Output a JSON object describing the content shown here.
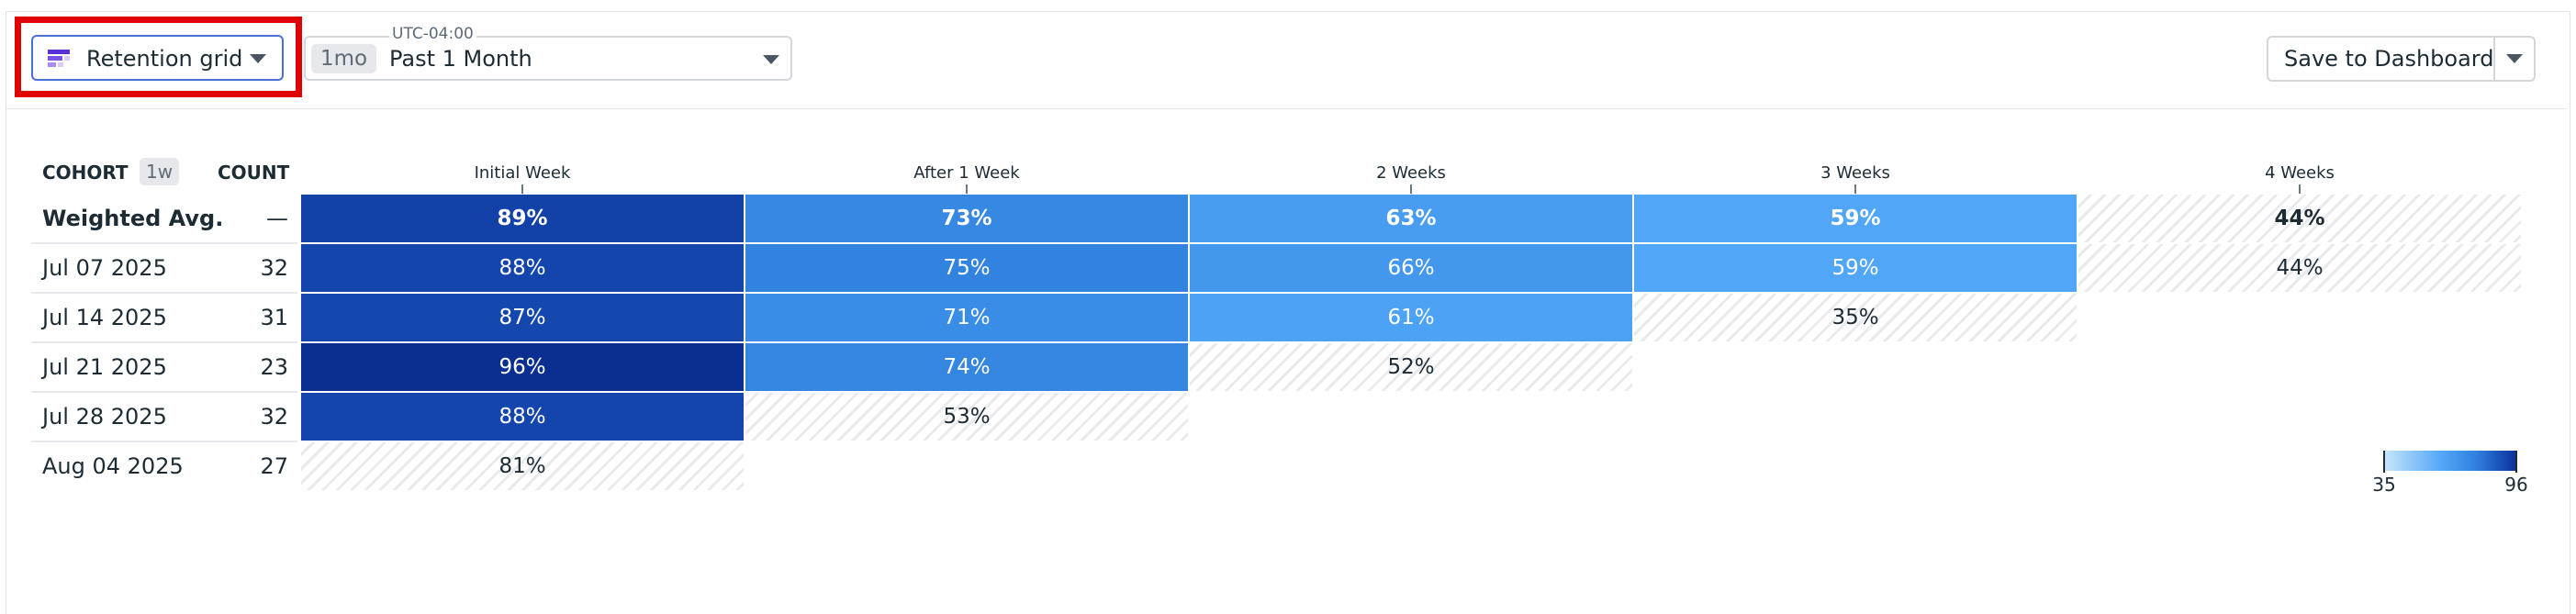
{
  "toolbar": {
    "visualization": {
      "label": "Retention grid",
      "icon": "retention-grid-icon"
    },
    "time_range": {
      "timezone": "UTC-04:00",
      "badge": "1mo",
      "label": "Past 1 Month"
    },
    "save": {
      "label": "Save to Dashboard"
    }
  },
  "grid": {
    "cohort_header": "COHORT",
    "period_badge": "1w",
    "count_header": "COUNT",
    "columns": [
      "Initial Week",
      "After 1 Week",
      "2 Weeks",
      "3 Weeks",
      "4 Weeks"
    ],
    "rows": [
      {
        "label": "Weighted Avg.",
        "count": "—",
        "values": [
          "89%",
          "73%",
          "63%",
          "59%",
          "44%"
        ],
        "nums": [
          89,
          73,
          63,
          59,
          44
        ],
        "partial_from": 4,
        "bold": true
      },
      {
        "label": "Jul 07 2025",
        "count": "32",
        "values": [
          "88%",
          "75%",
          "66%",
          "59%",
          "44%"
        ],
        "nums": [
          88,
          75,
          66,
          59,
          44
        ],
        "partial_from": 4,
        "bold": false
      },
      {
        "label": "Jul 14 2025",
        "count": "31",
        "values": [
          "87%",
          "71%",
          "61%",
          "35%"
        ],
        "nums": [
          87,
          71,
          61,
          35
        ],
        "partial_from": 3,
        "bold": false
      },
      {
        "label": "Jul 21 2025",
        "count": "23",
        "values": [
          "96%",
          "74%",
          "52%"
        ],
        "nums": [
          96,
          74,
          52
        ],
        "partial_from": 2,
        "bold": false
      },
      {
        "label": "Jul 28 2025",
        "count": "32",
        "values": [
          "88%",
          "53%"
        ],
        "nums": [
          88,
          53
        ],
        "partial_from": 1,
        "bold": false
      },
      {
        "label": "Aug 04 2025",
        "count": "27",
        "values": [
          "81%"
        ],
        "nums": [
          81
        ],
        "partial_from": 0,
        "bold": false
      }
    ],
    "legend": {
      "min_label": "35",
      "max_label": "96",
      "min": 35,
      "max": 96
    },
    "colors": {
      "low": "#4fa5f7",
      "mid": "#3385e0",
      "high": "#1448b0",
      "max": "#0a2f90"
    }
  }
}
